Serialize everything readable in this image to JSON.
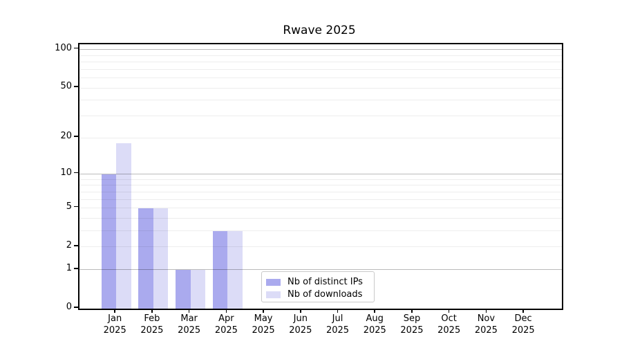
{
  "chart_data": {
    "type": "bar",
    "title": "Rwave 2025",
    "categories": [
      "Jan",
      "Feb",
      "Mar",
      "Apr",
      "May",
      "Jun",
      "Jul",
      "Aug",
      "Sep",
      "Oct",
      "Nov",
      "Dec"
    ],
    "year": "2025",
    "series": [
      {
        "name": "Nb of distinct IPs",
        "color": "#aaaaee",
        "values": [
          10,
          5,
          1,
          3,
          0,
          0,
          0,
          0,
          0,
          0,
          0,
          0
        ]
      },
      {
        "name": "Nb of downloads",
        "color": "#dcdcf7",
        "values": [
          18,
          5,
          1,
          3,
          0,
          0,
          0,
          0,
          0,
          0,
          0,
          0
        ]
      }
    ],
    "y_axis": {
      "scale": "log1p",
      "tick_values": [
        0,
        1,
        2,
        5,
        10,
        20,
        50,
        100
      ],
      "range": [
        0,
        110
      ]
    },
    "grid": {
      "major_values": [
        1,
        10,
        100
      ],
      "minor_values": [
        2,
        3,
        4,
        5,
        6,
        7,
        8,
        9,
        20,
        30,
        40,
        50,
        60,
        70,
        80,
        90
      ],
      "major_color": "#bcbcbc",
      "minor_color": "#ededed"
    },
    "legend": {
      "position": "bottom-center"
    },
    "colors": {
      "axis": "#000000",
      "background": "#ffffff"
    }
  }
}
